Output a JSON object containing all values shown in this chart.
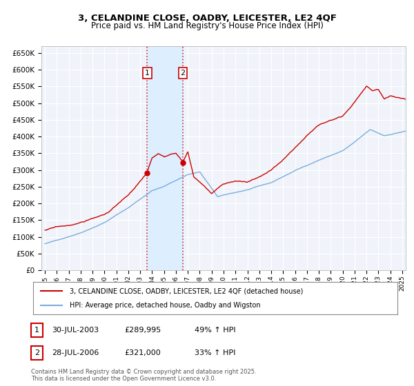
{
  "title": "3, CELANDINE CLOSE, OADBY, LEICESTER, LE2 4QF",
  "subtitle": "Price paid vs. HM Land Registry's House Price Index (HPI)",
  "legend_line1": "3, CELANDINE CLOSE, OADBY, LEICESTER, LE2 4QF (detached house)",
  "legend_line2": "HPI: Average price, detached house, Oadby and Wigston",
  "transaction1_date": "30-JUL-2003",
  "transaction1_price": "£289,995",
  "transaction1_hpi": "49% ↑ HPI",
  "transaction2_date": "28-JUL-2006",
  "transaction2_price": "£321,000",
  "transaction2_hpi": "33% ↑ HPI",
  "footer": "Contains HM Land Registry data © Crown copyright and database right 2025.\nThis data is licensed under the Open Government Licence v3.0.",
  "hpi_color": "#7aabda",
  "price_color": "#cc0000",
  "shading_color": "#ddeeff",
  "marker1_x_year": 2003.58,
  "marker2_x_year": 2006.58,
  "ylim": [
    0,
    670000
  ],
  "yticks": [
    0,
    50000,
    100000,
    150000,
    200000,
    250000,
    300000,
    350000,
    400000,
    450000,
    500000,
    550000,
    600000,
    650000
  ],
  "xlim_start": 1994.7,
  "xlim_end": 2025.3,
  "bg_color": "#f0f4fa"
}
